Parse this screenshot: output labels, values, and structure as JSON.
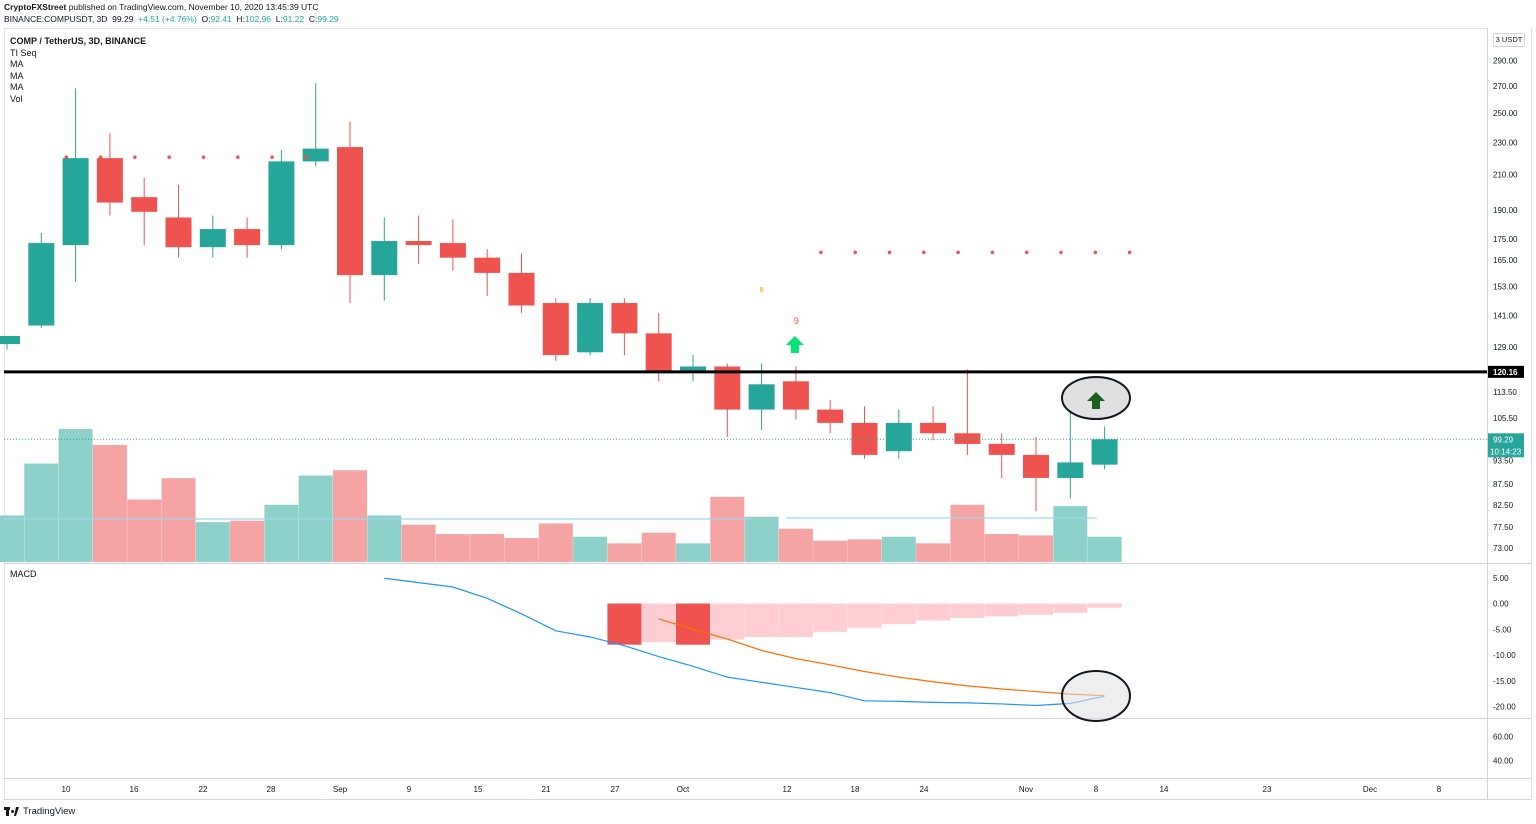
{
  "header": {
    "publisher": "CryptoFXStreet",
    "published_text": " published on TradingView.com, November 10, 2020 13:45:39 UTC",
    "symbol_line": "BINANCE:COMPUSDT, 3D",
    "last": "99.29",
    "change": "+4.51 (+4.76%)",
    "o_label": "O:",
    "o": "92.41",
    "h_label": "H:",
    "h": "102.96",
    "l_label": "L:",
    "l": "91.22",
    "c_label": "C:",
    "c": "99.29"
  },
  "legend": {
    "title": "COMP / TetherUS, 3D, BINANCE",
    "items": [
      "TI Seq",
      "MA",
      "MA",
      "MA",
      "Vol"
    ]
  },
  "macd_label": "MACD",
  "scale_unit": "USDT",
  "scale_prefix": "3",
  "footer": {
    "brand": "TradingView"
  },
  "colors": {
    "up": "#26a69a",
    "down": "#ef5350",
    "vol_up": "#8ed1cb",
    "vol_down": "#f5a3a3",
    "macd": "#2196f3",
    "signal": "#ff6d00",
    "hist": "#ffcdd2",
    "hist_strong": "#ef5350"
  },
  "chart_data": {
    "type": "candlestick",
    "symbol": "COMP / TetherUS",
    "timeframe": "3D",
    "exchange": "BINANCE",
    "y_axis_scale": "log",
    "price_ticks": [
      290,
      270,
      250,
      230,
      210,
      190,
      175,
      165,
      153,
      141,
      129,
      113.5,
      105.5,
      99.29,
      93.5,
      87.5,
      82.5,
      77.5,
      73
    ],
    "price_tick_labels": [
      "290.00",
      "270.00",
      "250.00",
      "230.00",
      "210.00",
      "190.00",
      "175.00",
      "165.00",
      "153.00",
      "141.00",
      "129.00",
      "113.50",
      "105.50",
      "99.29",
      "93.50",
      "87.50",
      "82.50",
      "77.50",
      "73.00"
    ],
    "x_tick_labels": [
      "10",
      "16",
      "22",
      "28",
      "Sep",
      "9",
      "15",
      "21",
      "27",
      "Oct",
      "12",
      "18",
      "24",
      "Nov",
      "8",
      "14",
      "23",
      "Dec",
      "8"
    ],
    "candles": [
      {
        "o": 130,
        "h": 133,
        "l": 128,
        "c": 133
      },
      {
        "o": 137,
        "h": 178,
        "l": 136,
        "c": 173
      },
      {
        "o": 172,
        "h": 268,
        "l": 155,
        "c": 220
      },
      {
        "o": 220,
        "h": 236,
        "l": 187,
        "c": 194
      },
      {
        "o": 197,
        "h": 208,
        "l": 172,
        "c": 189
      },
      {
        "o": 186,
        "h": 204,
        "l": 166,
        "c": 171
      },
      {
        "o": 171,
        "h": 187,
        "l": 166,
        "c": 180
      },
      {
        "o": 180,
        "h": 186,
        "l": 166,
        "c": 172
      },
      {
        "o": 172,
        "h": 225,
        "l": 170,
        "c": 218
      },
      {
        "o": 218,
        "h": 272,
        "l": 215,
        "c": 226
      },
      {
        "o": 227,
        "h": 244,
        "l": 146,
        "c": 158
      },
      {
        "o": 158,
        "h": 186,
        "l": 147,
        "c": 174
      },
      {
        "o": 174,
        "h": 187,
        "l": 163,
        "c": 172
      },
      {
        "o": 173,
        "h": 185,
        "l": 160,
        "c": 166
      },
      {
        "o": 166,
        "h": 170,
        "l": 149,
        "c": 159
      },
      {
        "o": 159,
        "h": 168,
        "l": 142,
        "c": 145
      },
      {
        "o": 146,
        "h": 148,
        "l": 124,
        "c": 126
      },
      {
        "o": 127,
        "h": 148,
        "l": 126,
        "c": 146
      },
      {
        "o": 146,
        "h": 148,
        "l": 126,
        "c": 134
      },
      {
        "o": 134,
        "h": 142,
        "l": 117,
        "c": 120
      },
      {
        "o": 120,
        "h": 126,
        "l": 117,
        "c": 122
      },
      {
        "o": 122,
        "h": 123,
        "l": 100,
        "c": 108
      },
      {
        "o": 108,
        "h": 123,
        "l": 102,
        "c": 116
      },
      {
        "o": 117,
        "h": 122,
        "l": 105,
        "c": 108
      },
      {
        "o": 108,
        "h": 111,
        "l": 101,
        "c": 104
      },
      {
        "o": 104,
        "h": 109,
        "l": 94,
        "c": 95
      },
      {
        "o": 96,
        "h": 108,
        "l": 94,
        "c": 104
      },
      {
        "o": 104,
        "h": 109,
        "l": 99,
        "c": 101
      },
      {
        "o": 101,
        "h": 121,
        "l": 95,
        "c": 98
      },
      {
        "o": 98,
        "h": 101,
        "l": 89,
        "c": 95
      },
      {
        "o": 95,
        "h": 100,
        "l": 81,
        "c": 89
      },
      {
        "o": 89,
        "h": 111,
        "l": 84,
        "c": 93
      },
      {
        "o": 92.41,
        "h": 102.96,
        "l": 91.22,
        "c": 99.29
      }
    ],
    "volume_relative": [
      0.35,
      0.74,
      1.0,
      0.88,
      0.47,
      0.63,
      0.3,
      0.31,
      0.43,
      0.65,
      0.69,
      0.35,
      0.28,
      0.21,
      0.21,
      0.18,
      0.29,
      0.19,
      0.14,
      0.22,
      0.14,
      0.49,
      0.34,
      0.25,
      0.16,
      0.17,
      0.19,
      0.14,
      0.43,
      0.21,
      0.2,
      0.42,
      0.19
    ],
    "ti_seq_markers": [
      {
        "bar": 1,
        "price": 220
      },
      {
        "bar": 2,
        "price": 220
      },
      {
        "bar": 3,
        "price": 220
      },
      {
        "bar": 4,
        "price": 220
      },
      {
        "bar": 5,
        "price": 220
      },
      {
        "bar": 6,
        "price": 220
      },
      {
        "bar": 7,
        "price": 220
      },
      {
        "bar": 8,
        "price": 220
      },
      {
        "bar": 23,
        "price": 168
      },
      {
        "bar": 24,
        "price": 168
      },
      {
        "bar": 25,
        "price": 168
      },
      {
        "bar": 26,
        "price": 168
      },
      {
        "bar": 27,
        "price": 168
      },
      {
        "bar": 28,
        "price": 168
      },
      {
        "bar": 29,
        "price": 168
      },
      {
        "bar": 30,
        "price": 168
      },
      {
        "bar": 31,
        "price": 168
      },
      {
        "bar": 32,
        "price": 168
      }
    ],
    "seq_label": {
      "text": "9",
      "bar": 23
    },
    "seq_label_small": {
      "text": "8",
      "bar": 22
    },
    "buy_arrows": [
      {
        "bar": 23,
        "price": 131
      },
      {
        "bar": 32,
        "price": 111
      }
    ],
    "resistance": {
      "price": 120.16,
      "label": "120.16"
    },
    "last_price": {
      "value": 99.29,
      "label": "99.29",
      "countdown": "10:14:23"
    },
    "macd": {
      "ticks": [
        5,
        0,
        -5,
        -10,
        -15,
        -20
      ],
      "tick_labels": [
        "5.00",
        "0.00",
        "-5.00",
        "-10.00",
        "-15.00",
        "-20.00"
      ],
      "macd_line": [
        {
          "bar": 11,
          "v": 4.9
        },
        {
          "bar": 13,
          "v": 3.2
        },
        {
          "bar": 14,
          "v": 1.0
        },
        {
          "bar": 15,
          "v": -2.0
        },
        {
          "bar": 16,
          "v": -5.3
        },
        {
          "bar": 17,
          "v": -6.5
        },
        {
          "bar": 18,
          "v": -8.2
        },
        {
          "bar": 19,
          "v": -10.3
        },
        {
          "bar": 20,
          "v": -12.2
        },
        {
          "bar": 21,
          "v": -14.3
        },
        {
          "bar": 22,
          "v": -15.3
        },
        {
          "bar": 23,
          "v": -16.3
        },
        {
          "bar": 24,
          "v": -17.3
        },
        {
          "bar": 25,
          "v": -18.9
        },
        {
          "bar": 26,
          "v": -19.0
        },
        {
          "bar": 27,
          "v": -19.2
        },
        {
          "bar": 28,
          "v": -19.3
        },
        {
          "bar": 29,
          "v": -19.5
        },
        {
          "bar": 30,
          "v": -19.8
        },
        {
          "bar": 31,
          "v": -19.4
        },
        {
          "bar": 32,
          "v": -18.0
        }
      ],
      "signal_line": [
        {
          "bar": 19,
          "v": -3.0
        },
        {
          "bar": 20,
          "v": -5.0
        },
        {
          "bar": 21,
          "v": -6.9
        },
        {
          "bar": 22,
          "v": -9.1
        },
        {
          "bar": 23,
          "v": -10.7
        },
        {
          "bar": 24,
          "v": -11.9
        },
        {
          "bar": 25,
          "v": -13.2
        },
        {
          "bar": 26,
          "v": -14.3
        },
        {
          "bar": 27,
          "v": -15.2
        },
        {
          "bar": 28,
          "v": -16.0
        },
        {
          "bar": 29,
          "v": -16.6
        },
        {
          "bar": 30,
          "v": -17.1
        },
        {
          "bar": 31,
          "v": -17.6
        },
        {
          "bar": 32,
          "v": -17.9
        }
      ],
      "histogram": [
        {
          "bar": 18,
          "v": -8.0,
          "strong": true
        },
        {
          "bar": 19,
          "v": -7.5
        },
        {
          "bar": 20,
          "v": -8.0,
          "strong": true
        },
        {
          "bar": 21,
          "v": -7.0
        },
        {
          "bar": 22,
          "v": -6.5
        },
        {
          "bar": 23,
          "v": -6.5
        },
        {
          "bar": 24,
          "v": -5.5
        },
        {
          "bar": 25,
          "v": -4.7
        },
        {
          "bar": 26,
          "v": -4.0
        },
        {
          "bar": 27,
          "v": -3.3
        },
        {
          "bar": 28,
          "v": -2.8
        },
        {
          "bar": 29,
          "v": -2.5
        },
        {
          "bar": 30,
          "v": -2.2
        },
        {
          "bar": 31,
          "v": -1.8
        },
        {
          "bar": 32,
          "v": -0.8
        }
      ]
    },
    "rsi_ticks": [
      60,
      40
    ],
    "rsi_tick_labels": [
      "60.00",
      "40.00"
    ]
  }
}
